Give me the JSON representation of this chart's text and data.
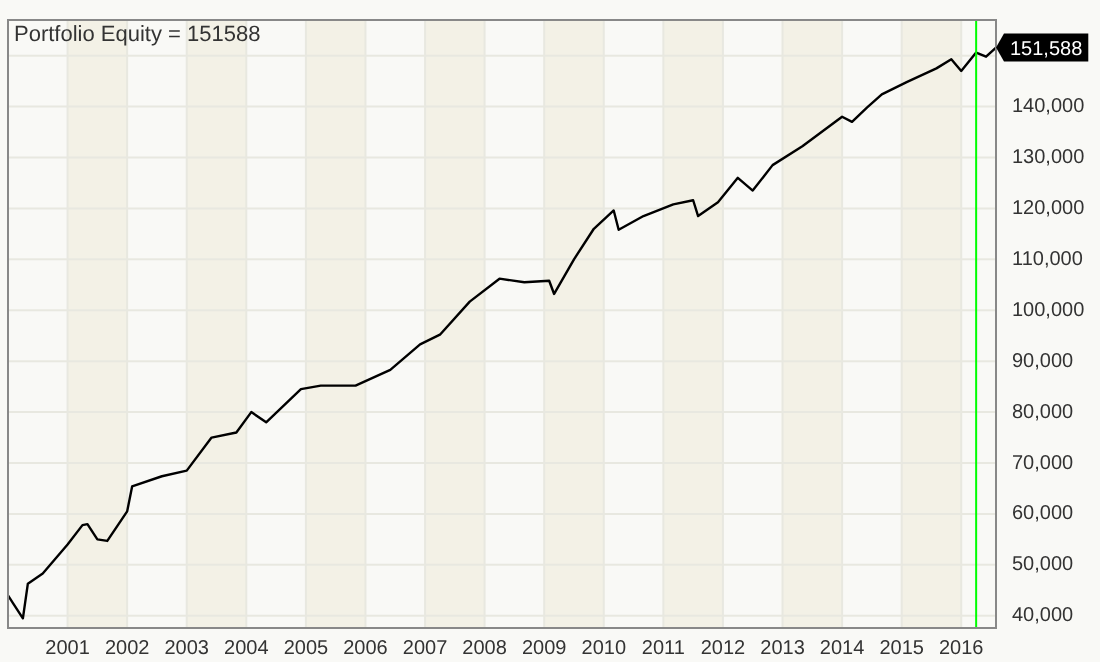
{
  "chart_data": {
    "type": "line",
    "title": "Portfolio Equity = 151588",
    "x": [
      "2000-01",
      "2000-02",
      "2000-04",
      "2000-05",
      "2000-08",
      "2001-01",
      "2001-04",
      "2001-05",
      "2001-07",
      "2001-09",
      "2002-01",
      "2002-02",
      "2002-08",
      "2003-01",
      "2003-06",
      "2003-11",
      "2004-02",
      "2004-05",
      "2004-12",
      "2005-04",
      "2005-11",
      "2006-06",
      "2006-12",
      "2007-04",
      "2007-10",
      "2008-04",
      "2008-09",
      "2009-02",
      "2009-03",
      "2009-07",
      "2009-11",
      "2010-03",
      "2010-04",
      "2010-09",
      "2011-03",
      "2011-07",
      "2011-08",
      "2011-12",
      "2012-04",
      "2012-07",
      "2012-11",
      "2013-05",
      "2014-01",
      "2014-03",
      "2014-06",
      "2014-09",
      "2015-02",
      "2015-08",
      "2015-11",
      "2016-01",
      "2016-04",
      "2016-06",
      "2016-08"
    ],
    "series": [
      {
        "color": "#000000",
        "values": [
          44000,
          42500,
          39500,
          46300,
          48300,
          54000,
          57800,
          58000,
          55000,
          54700,
          60500,
          65400,
          67400,
          68500,
          75000,
          76000,
          80000,
          78000,
          84500,
          85200,
          85200,
          88300,
          93300,
          95200,
          101700,
          106200,
          105500,
          105800,
          103200,
          110000,
          116000,
          119600,
          115800,
          118500,
          120800,
          121600,
          118500,
          121200,
          126000,
          123500,
          128500,
          132200,
          138000,
          137000,
          139800,
          142400,
          144800,
          147500,
          149300,
          147000,
          150600,
          149800,
          151588
        ]
      }
    ],
    "xlim": [
      "2000-01",
      "2016-08"
    ],
    "xticks": [
      "2001",
      "2002",
      "2003",
      "2004",
      "2005",
      "2006",
      "2007",
      "2008",
      "2009",
      "2010",
      "2011",
      "2012",
      "2013",
      "2014",
      "2015",
      "2016"
    ],
    "ylim": [
      37600,
      157000
    ],
    "yticks": [
      {
        "value": 40000,
        "label": "40,000"
      },
      {
        "value": 50000,
        "label": "50,000"
      },
      {
        "value": 60000,
        "label": "60,000"
      },
      {
        "value": 70000,
        "label": "70,000"
      },
      {
        "value": 80000,
        "label": "80,000"
      },
      {
        "value": 90000,
        "label": "90,000"
      },
      {
        "value": 100000,
        "label": "100,000"
      },
      {
        "value": 110000,
        "label": "110,000"
      },
      {
        "value": 120000,
        "label": "120,000"
      },
      {
        "value": 130000,
        "label": "130,000"
      },
      {
        "value": 140000,
        "label": "140,000"
      },
      {
        "value": 150000,
        "label": null
      }
    ],
    "grid": true,
    "legend": false,
    "marker": "none",
    "line_style": "solid",
    "bands": [
      {
        "axis": "x",
        "from": "2001",
        "to": "2002",
        "color": "#f3f1e6"
      },
      {
        "axis": "x",
        "from": "2003",
        "to": "2004",
        "color": "#f3f1e6"
      },
      {
        "axis": "x",
        "from": "2005",
        "to": "2006",
        "color": "#f3f1e6"
      },
      {
        "axis": "x",
        "from": "2007",
        "to": "2008",
        "color": "#f3f1e6"
      },
      {
        "axis": "x",
        "from": "2009",
        "to": "2010",
        "color": "#f3f1e6"
      },
      {
        "axis": "x",
        "from": "2011",
        "to": "2012",
        "color": "#f3f1e6"
      },
      {
        "axis": "x",
        "from": "2013",
        "to": "2014",
        "color": "#f3f1e6"
      },
      {
        "axis": "x",
        "from": "2015",
        "to": "2016",
        "color": "#f3f1e6"
      }
    ],
    "ref_lines": [
      {
        "axis": "x",
        "value": "2016-04",
        "color": "#00ff00"
      }
    ],
    "annotations": [
      {
        "text": "151,588",
        "x": "2016-08",
        "y": 151588
      }
    ]
  }
}
